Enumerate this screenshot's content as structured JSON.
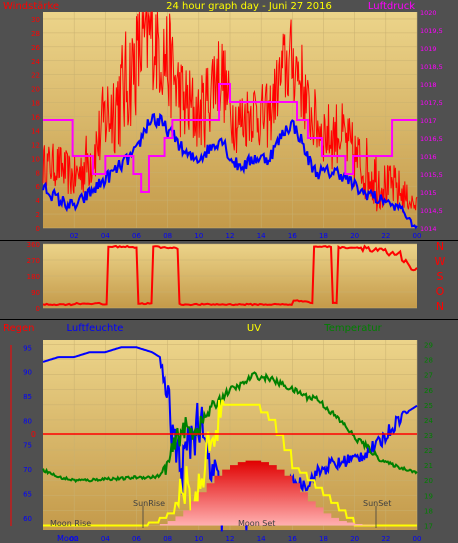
{
  "colors": {
    "panel_bg": "#505050",
    "plot_top": "#ecd48a",
    "plot_bottom": "#c49a4a",
    "wind": "#ff0000",
    "wind_avg": "#0000ff",
    "pressure": "#ff00ff",
    "humidity": "#0000ff",
    "temperature": "#008000",
    "uv": "#ffff00",
    "rain_axis": "#ff0000",
    "rain_line": "#ff0000",
    "sun_fill": "#ff2020",
    "direction": "#ff0000",
    "dir_fill": "#ff0000"
  },
  "chart_data": [
    {
      "type": "line",
      "title": "24 hour graph day - Juni 27 2016",
      "left_axis_label": "Windstärke",
      "right_axis_label": "Luftdruck",
      "x_ticks": [
        "02",
        "04",
        "06",
        "08",
        "10",
        "12",
        "14",
        "16",
        "18",
        "20",
        "22",
        "00"
      ],
      "left_ticks": [
        "0",
        "2",
        "4",
        "6",
        "8",
        "10",
        "12",
        "14",
        "16",
        "18",
        "20",
        "22",
        "24",
        "26",
        "28",
        "30"
      ],
      "right_ticks": [
        "1014",
        "1014,5",
        "1015",
        "1015,5",
        "1016",
        "1016,5",
        "1017",
        "1017,5",
        "1018",
        "1018,5",
        "1019",
        "1019,5",
        "1020"
      ],
      "ylim_left": [
        0,
        31
      ],
      "ylim_right": [
        1014,
        1020
      ],
      "series": [
        {
          "key": "gust",
          "kind": "spiky",
          "hours": [
            0,
            1,
            2,
            3,
            3.5,
            4,
            5,
            6,
            6.5,
            7,
            7.5,
            8,
            8.5,
            9,
            9.5,
            10,
            10.5,
            11,
            11.5,
            12,
            12.5,
            13,
            13.5,
            14,
            14.5,
            15,
            15.5,
            16,
            16.5,
            17,
            17.5,
            18,
            18.5,
            19,
            19.5,
            20,
            20.5,
            21,
            21.5,
            22,
            22.5,
            23,
            23.5,
            24
          ],
          "values": [
            9,
            9,
            7,
            10,
            12,
            16,
            19,
            24,
            27,
            28,
            26,
            24,
            21,
            18,
            17,
            16,
            18,
            22,
            22,
            17,
            15,
            16,
            17,
            16,
            16,
            20,
            23,
            24,
            22,
            17,
            15,
            14,
            13,
            14,
            12,
            10,
            9,
            8,
            7,
            6,
            6,
            5,
            4,
            3
          ],
          "amp": [
            2,
            2,
            2,
            3,
            3,
            4,
            5,
            5,
            5,
            5,
            5,
            5,
            4,
            4,
            4,
            3,
            4,
            4,
            4,
            3,
            3,
            3,
            3,
            3,
            3,
            3,
            4,
            4,
            4,
            3,
            3,
            3,
            3,
            3,
            3,
            3,
            3,
            3,
            3,
            2,
            2,
            2,
            1,
            1
          ]
        },
        {
          "key": "wind_avg",
          "kind": "smooth",
          "hours": [
            0,
            1,
            2,
            3,
            3.5,
            4,
            5,
            6,
            6.5,
            7,
            7.5,
            8,
            8.5,
            9,
            9.5,
            10,
            10.5,
            11,
            11.5,
            12,
            12.5,
            13,
            13.5,
            14,
            14.5,
            15,
            15.5,
            16,
            16.5,
            17,
            17.5,
            18,
            18.5,
            19,
            19.5,
            20,
            20.5,
            21,
            21.5,
            22,
            22.5,
            23,
            23.5,
            24
          ],
          "values": [
            6,
            4,
            3,
            5,
            6,
            7,
            9,
            11,
            14,
            16,
            15,
            14,
            13,
            11,
            10,
            10,
            11,
            12,
            13,
            10,
            9,
            9,
            10,
            10,
            10,
            12,
            14,
            15,
            13,
            10,
            8,
            8,
            8,
            8,
            7,
            6,
            5,
            5,
            4,
            4,
            3,
            3,
            1,
            0
          ],
          "amp": [
            1,
            1,
            1,
            1,
            1,
            1,
            1,
            1,
            1,
            1.5,
            1.5,
            1,
            1,
            1,
            1,
            1,
            1,
            1,
            1,
            1,
            1,
            1,
            1,
            1,
            1,
            1,
            1,
            1,
            1,
            1,
            1,
            1,
            1,
            1,
            1,
            1,
            1,
            1,
            1,
            0.5,
            0.5,
            0.5,
            0.5,
            0.3
          ]
        },
        {
          "key": "pressure",
          "kind": "step",
          "hours": [
            0,
            1.9,
            2.8,
            3.2,
            4.0,
            5.8,
            6.3,
            6.8,
            7.8,
            8.3,
            8.6,
            10.2,
            11.3,
            12.0,
            14.2,
            15.7,
            16.3,
            17.0,
            17.9,
            18.2,
            19.4,
            19.9,
            20.4,
            22.4,
            24
          ],
          "values": [
            1017,
            1016,
            1016,
            1015.5,
            1016,
            1015.5,
            1015,
            1016,
            1016.5,
            1017,
            1017,
            1017,
            1018,
            1017.5,
            1017.5,
            1017.5,
            1017,
            1016.5,
            1016,
            1016,
            1015.5,
            1016,
            1016,
            1017,
            1017
          ]
        }
      ]
    },
    {
      "type": "line",
      "title": "",
      "right_axis_label": [
        "N",
        "W",
        "S",
        "O",
        "N"
      ],
      "left_ticks": [
        "0",
        "90",
        "180",
        "270",
        "360"
      ],
      "ylim": [
        0,
        360
      ],
      "series": [
        {
          "key": "direction",
          "kind": "step",
          "hours": [
            0,
            2,
            3.8,
            4.1,
            5.8,
            6.1,
            7.0,
            7.5,
            8.4,
            8.7,
            12,
            16,
            17.0,
            17.3,
            18.2,
            18.6,
            18.9,
            20,
            21,
            22,
            23,
            23.5,
            24
          ],
          "values": [
            20,
            25,
            20,
            345,
            340,
            25,
            345,
            340,
            335,
            20,
            20,
            40,
            30,
            345,
            345,
            30,
            340,
            340,
            320,
            300,
            270,
            220,
            210
          ]
        }
      ]
    },
    {
      "type": "line",
      "labels": {
        "rain": "Regen",
        "humidity": "Luftfeuchte",
        "uv": "UV",
        "temperature": "Temperatur"
      },
      "rain_marker": "0",
      "x_ticks": [
        "02",
        "04",
        "06",
        "08",
        "10",
        "12",
        "14",
        "16",
        "18",
        "20",
        "22",
        "00"
      ],
      "left_ticks": [
        "60",
        "65",
        "70",
        "75",
        "80",
        "85",
        "90",
        "95"
      ],
      "right_ticks": [
        "17",
        "18",
        "19",
        "20",
        "21",
        "22",
        "23",
        "24",
        "25",
        "26",
        "27",
        "28",
        "29"
      ],
      "ylim_left": [
        57.5,
        96.5
      ],
      "ylim_right": [
        16.7,
        29.3
      ],
      "annotations": {
        "moon_rise": "Moon Rise",
        "sun_rise": "SunRise",
        "moon_set": "Moon Set",
        "sun_set": "SunSet",
        "moon_label": "Moon"
      },
      "series": [
        {
          "key": "humidity",
          "kind": "noisy",
          "hours": [
            0,
            1,
            2,
            3,
            4,
            5,
            6,
            7,
            7.5,
            8,
            8.5,
            9,
            9.5,
            10,
            10.5,
            11,
            11.5,
            12,
            12.5,
            13,
            13.5,
            14,
            14.5,
            15,
            15.5,
            16,
            16.5,
            17,
            17.5,
            18,
            18.5,
            19,
            19.5,
            20,
            20.5,
            21,
            21.5,
            22,
            22.5,
            23,
            23.5,
            24
          ],
          "values": [
            92,
            93,
            93,
            94,
            94,
            95,
            95,
            94,
            93,
            84,
            74,
            70,
            77,
            80,
            72,
            68,
            62,
            64,
            61,
            60,
            61,
            62,
            62,
            64,
            65,
            67,
            67,
            67,
            69,
            70,
            71,
            71,
            72,
            72,
            73,
            74,
            75,
            77,
            79,
            81,
            82,
            83
          ],
          "amp": [
            0,
            0,
            0,
            0,
            0,
            0,
            0,
            0,
            0,
            3,
            4,
            4,
            4,
            4,
            4,
            4,
            4,
            3,
            2,
            2,
            2,
            2,
            2,
            2,
            2,
            1,
            1,
            1,
            1,
            1,
            1,
            1,
            1,
            1,
            1,
            1,
            1,
            1,
            1,
            1,
            0,
            0
          ]
        },
        {
          "key": "temperature",
          "kind": "smooth",
          "hours": [
            0,
            1,
            2,
            3,
            4,
            5,
            6,
            7,
            7.5,
            8,
            8.5,
            9,
            9.5,
            10,
            10.5,
            11,
            11.5,
            12,
            12.5,
            13,
            13.5,
            14,
            14.5,
            15,
            15.5,
            16,
            16.5,
            17,
            17.5,
            18,
            18.5,
            19,
            19.5,
            20,
            20.5,
            21,
            21.5,
            22,
            22.5,
            23,
            23.5,
            24
          ],
          "values": [
            20.7,
            20.2,
            20.0,
            20.0,
            20.1,
            20.1,
            20.2,
            20.2,
            20.3,
            21.0,
            22.5,
            23.5,
            23.2,
            23.5,
            24.3,
            25.0,
            25.5,
            26.0,
            26.2,
            26.5,
            27.0,
            26.8,
            26.8,
            26.5,
            26.3,
            26.0,
            25.8,
            25.5,
            25.5,
            25.0,
            24.5,
            24.0,
            23.5,
            22.8,
            22.5,
            22.0,
            21.5,
            21.2,
            21.0,
            20.8,
            20.7,
            20.5
          ],
          "amp": [
            0.1,
            0.1,
            0.1,
            0.1,
            0.1,
            0.1,
            0.1,
            0.1,
            0.1,
            0.6,
            0.8,
            0.8,
            0.8,
            0.6,
            0.5,
            0.4,
            0.3,
            0.2,
            0.2,
            0.2,
            0.2,
            0.2,
            0.2,
            0.2,
            0.2,
            0.2,
            0.2,
            0.2,
            0.2,
            0.2,
            0.2,
            0.2,
            0.2,
            0.2,
            0.2,
            0.2,
            0.2,
            0.1,
            0.1,
            0.1,
            0.1,
            0.1
          ]
        },
        {
          "key": "uv",
          "kind": "step",
          "hours": [
            0,
            6.8,
            7.5,
            8.0,
            8.5,
            9.0,
            9.5,
            10.0,
            10.5,
            11.0,
            11.5,
            12.0,
            12.5,
            13.0,
            13.5,
            14.0,
            14.5,
            15.0,
            15.5,
            16.0,
            16.5,
            17.0,
            17.5,
            18.0,
            18.5,
            19.0,
            19.5,
            20.0,
            20.5,
            24
          ],
          "values": [
            17.0,
            17.2,
            17.5,
            17.8,
            18.5,
            19.5,
            18.5,
            20.5,
            22.5,
            24.0,
            25.0,
            25.0,
            25.0,
            25.0,
            25.0,
            24.5,
            24.0,
            23.0,
            22.0,
            20.8,
            20.5,
            20.0,
            19.5,
            19.0,
            18.5,
            18.0,
            17.5,
            17.0,
            17.0,
            17.0
          ]
        },
        {
          "key": "sun",
          "kind": "area",
          "hours": [
            6.9,
            7.5,
            8,
            8.5,
            9,
            9.5,
            10,
            10.5,
            11,
            11.5,
            12,
            12.5,
            13,
            13.5,
            14,
            14.5,
            15,
            15.5,
            16,
            16.5,
            17,
            17.5,
            18,
            18.5,
            19,
            19.5,
            20,
            20.5,
            21.3
          ],
          "values": [
            17.0,
            17.1,
            17.3,
            17.6,
            18.0,
            18.6,
            19.2,
            19.8,
            20.3,
            20.7,
            21.0,
            21.2,
            21.3,
            21.3,
            21.2,
            21.0,
            20.7,
            20.3,
            19.8,
            19.2,
            18.6,
            18.2,
            17.8,
            17.5,
            17.3,
            17.2,
            17.1,
            17.05,
            17.0
          ]
        }
      ]
    }
  ]
}
